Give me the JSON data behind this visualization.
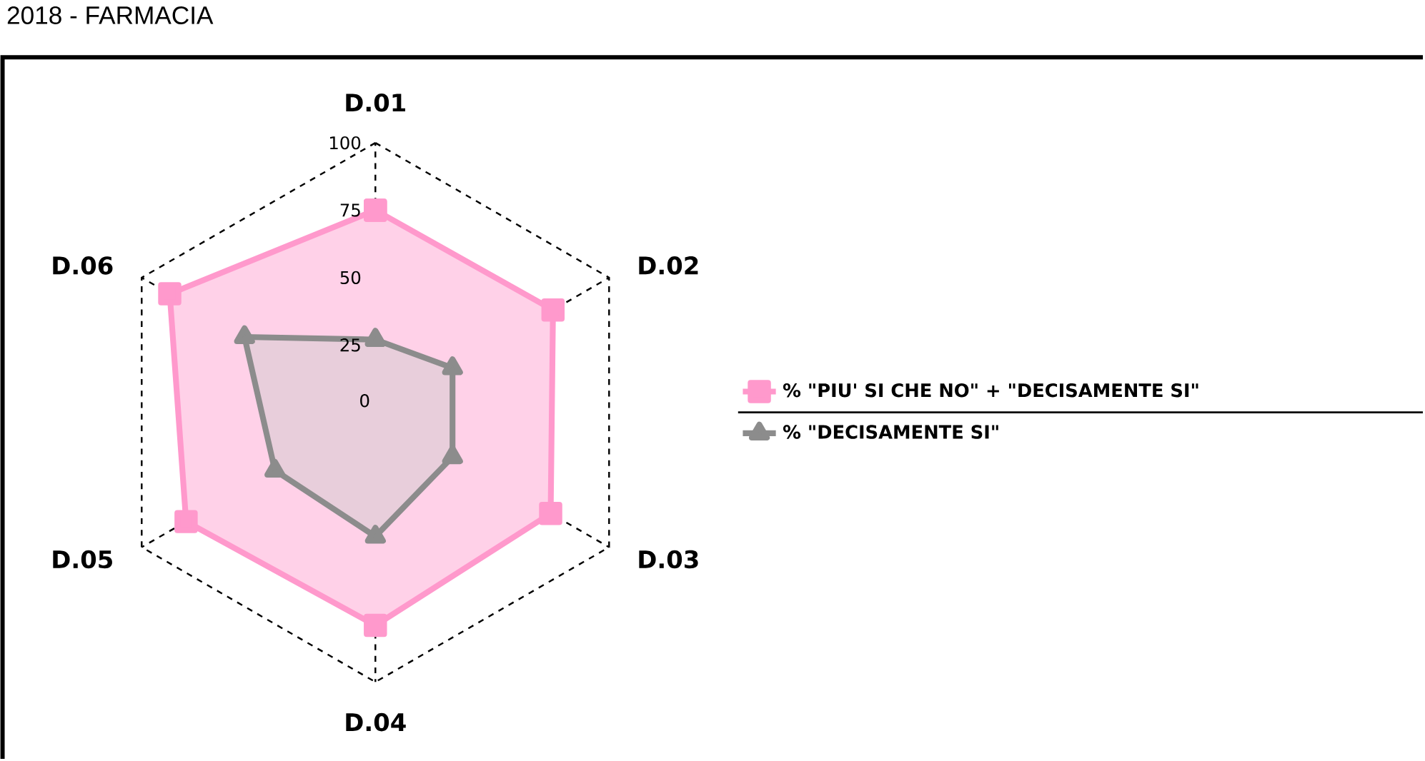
{
  "chart_data": {
    "type": "radar",
    "title": "2018 - FARMACIA",
    "categories": [
      "D.01",
      "D.02",
      "D.03",
      "D.04",
      "D.05",
      "D.06"
    ],
    "series": [
      {
        "name": "% \"PIU' SI CHE NO\" + \"DECISAMENTE SI\"",
        "color": "#ff99cc",
        "marker": "square",
        "values": [
          75,
          76,
          75,
          79,
          81,
          88
        ]
      },
      {
        "name": "% \"DECISAMENTE SI\"",
        "color": "#8c8c8c",
        "marker": "triangle",
        "values": [
          27,
          33,
          33,
          46,
          43,
          56
        ]
      }
    ],
    "ylim": [
      0,
      100
    ],
    "yticks": [
      0,
      25,
      50,
      75,
      100
    ],
    "grid": true,
    "legend": "right",
    "line_style": "dashed"
  }
}
